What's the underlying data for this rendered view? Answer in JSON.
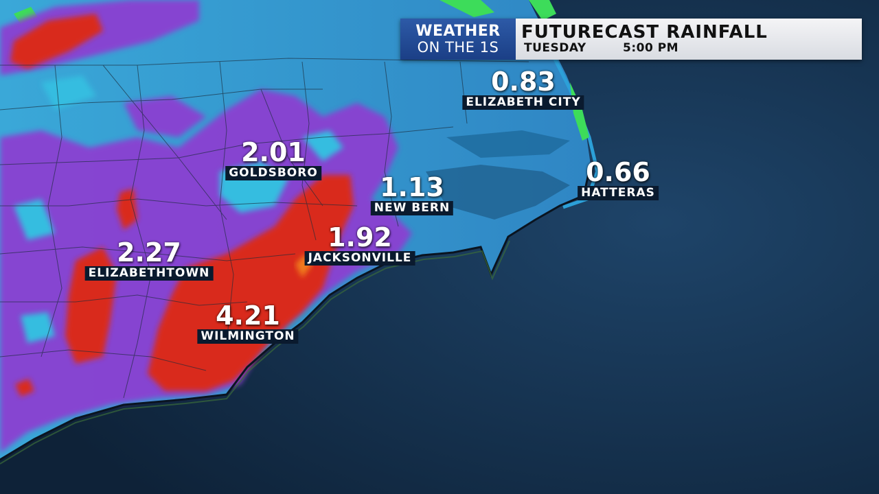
{
  "banner": {
    "brand_top": "WEATHER",
    "brand_bottom": "ON THE 1S",
    "title": "FUTURECAST  RAINFALL",
    "day": "TUESDAY",
    "time": "5:00 PM"
  },
  "cities": [
    {
      "name": "ELIZABETH CITY",
      "value": "0.83"
    },
    {
      "name": "HATTERAS",
      "value": "0.66"
    },
    {
      "name": "GOLDSBORO",
      "value": "2.01"
    },
    {
      "name": "NEW BERN",
      "value": "1.13"
    },
    {
      "name": "JACKSONVILLE",
      "value": "1.92"
    },
    {
      "name": "ELIZABETHTOWN",
      "value": "2.27"
    },
    {
      "name": "WILMINGTON",
      "value": "4.21"
    }
  ],
  "colors": {
    "ocean": "#1f3f5e",
    "rain_light": "#2ec7e6",
    "rain_moderate": "#8b3fd1",
    "rain_heavy": "#d92a1e",
    "rain_extreme": "#f07a1e",
    "rain_trace": "#3ddc5a"
  }
}
